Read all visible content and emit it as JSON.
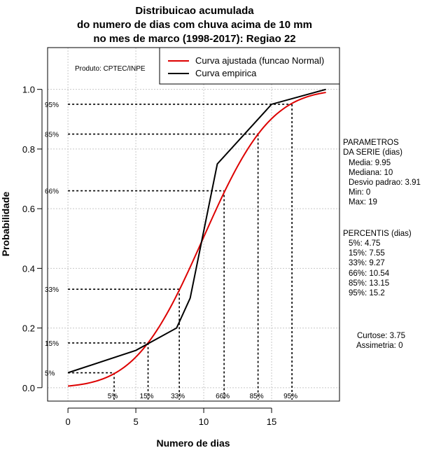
{
  "chart_data": {
    "type": "line",
    "title": [
      "Distribuicao acumulada",
      "do numero de dias com chuva acima de 10 mm",
      "no mes de marco (1998-2017): Regiao 22"
    ],
    "xlabel": "Numero de dias",
    "ylabel": "Probabilidade",
    "xlim": [
      -1.5,
      20
    ],
    "ylim": [
      -0.045,
      1.14
    ],
    "x_ticks": [
      "0",
      "5",
      "10",
      "15"
    ],
    "y_ticks": [
      "0.0",
      "0.2",
      "0.4",
      "0.6",
      "0.8",
      "1.0"
    ],
    "x_tick_values": [
      0,
      5,
      10,
      15
    ],
    "y_tick_values": [
      0,
      0.2,
      0.4,
      0.6,
      0.8,
      1.0
    ],
    "grid": true,
    "legend_position": "top-right",
    "producer": "Produto: CPTEC/INPE",
    "series": [
      {
        "name": "Curva ajustada (funcao Normal)",
        "color": "#dd0000",
        "distribution": "normal",
        "mean": 9.95,
        "sd": 3.91,
        "x_range": [
          0,
          19
        ]
      },
      {
        "name": "Curva empirica",
        "color": "#000000",
        "x": [
          0,
          5,
          8,
          9,
          11,
          15,
          19
        ],
        "y": [
          0.05,
          0.125,
          0.2,
          0.3,
          0.75,
          0.95,
          1.0
        ]
      }
    ],
    "percentile_markers": [
      {
        "label": "5%",
        "prob": 0.05,
        "x": 3.4
      },
      {
        "label": "15%",
        "prob": 0.15,
        "x": 5.9
      },
      {
        "label": "33%",
        "prob": 0.33,
        "x": 8.2
      },
      {
        "label": "66%",
        "prob": 0.66,
        "x": 11.5
      },
      {
        "label": "85%",
        "prob": 0.85,
        "x": 14
      },
      {
        "label": "95%",
        "prob": 0.95,
        "x": 16.5
      }
    ]
  },
  "parametros": {
    "heading": [
      "PARAMETROS",
      "DA SERIE (dias)"
    ],
    "lines": [
      "Media: 9.95",
      "Mediana: 10",
      "Desvio padrao: 3.91",
      "Min: 0",
      "Max: 19"
    ]
  },
  "percentis": {
    "heading": "PERCENTIS (dias)",
    "lines": [
      "5%: 4.75",
      "15%: 7.55",
      "33%: 9.27",
      "66%: 10.54",
      "85%: 13.15",
      "95%: 15.2"
    ]
  },
  "stats": {
    "curtose": "Curtose: 3.75",
    "assimetria": "Assimetria: 0"
  }
}
